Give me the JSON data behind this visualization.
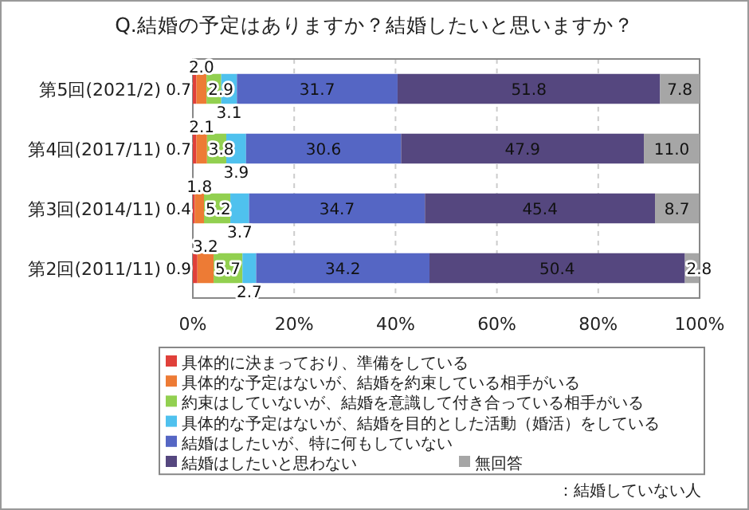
{
  "chart_data": {
    "type": "bar",
    "orientation": "horizontal",
    "stacked": true,
    "title": "Q.結婚の予定はありますか？結婚したいと思いますか？",
    "categories": [
      "第5回(2021/2)",
      "第4回(2017/11)",
      "第3回(2014/11)",
      "第2回(2011/11)"
    ],
    "series": [
      {
        "name": "具体的に決まっており、準備をしている",
        "color": "#e0403a",
        "values": [
          0.7,
          0.7,
          0.4,
          0.9
        ],
        "value_labels": [
          "0.7",
          "0.7",
          "0.4",
          "0.9"
        ]
      },
      {
        "name": "具体的な予定はないが、結婚を約束している相手がいる",
        "color": "#ed7b35",
        "values": [
          2.0,
          2.1,
          1.8,
          3.2
        ],
        "value_labels": [
          "2.0",
          "2.1",
          "1.8",
          "3.2"
        ]
      },
      {
        "name": "約束はしていないが、結婚を意識して付き合っている相手がいる",
        "color": "#92d050",
        "values": [
          2.9,
          3.8,
          5.2,
          5.7
        ],
        "value_labels": [
          "2.9",
          "3.8",
          "5.2",
          "5.7"
        ]
      },
      {
        "name": "具体的な予定はないが、結婚を目的とした活動（婚活）をしている",
        "color": "#4fc1ee",
        "values": [
          3.1,
          3.9,
          3.7,
          2.7
        ],
        "value_labels": [
          "3.1",
          "3.9",
          "3.7",
          "2.7"
        ]
      },
      {
        "name": "結婚はしたいが、特に何もしていない",
        "color": "#5566c4",
        "values": [
          31.7,
          30.6,
          34.7,
          34.2
        ],
        "value_labels": [
          "31.7",
          "30.6",
          "34.7",
          "34.2"
        ]
      },
      {
        "name": "結婚はしたいと思わない",
        "color": "#55477f",
        "values": [
          51.8,
          47.9,
          45.4,
          50.4
        ],
        "value_labels": [
          "51.8",
          "47.9",
          "45.4",
          "50.4"
        ]
      },
      {
        "name": "無回答",
        "color": "#a6a6a6",
        "values": [
          7.8,
          11.0,
          8.7,
          2.8
        ],
        "value_labels": [
          "7.8",
          "11.0",
          "8.7",
          "2.8"
        ]
      }
    ],
    "xlim": [
      0,
      100
    ],
    "xticks": [
      {
        "value": 0,
        "label": "0%"
      },
      {
        "value": 20,
        "label": "20%"
      },
      {
        "value": 40,
        "label": "40%"
      },
      {
        "value": 60,
        "label": "60%"
      },
      {
        "value": 80,
        "label": "80%"
      },
      {
        "value": 100,
        "label": "100%"
      }
    ],
    "grid": "x",
    "legend": "bottom",
    "annotations": [
      "：結婚していない人"
    ]
  }
}
